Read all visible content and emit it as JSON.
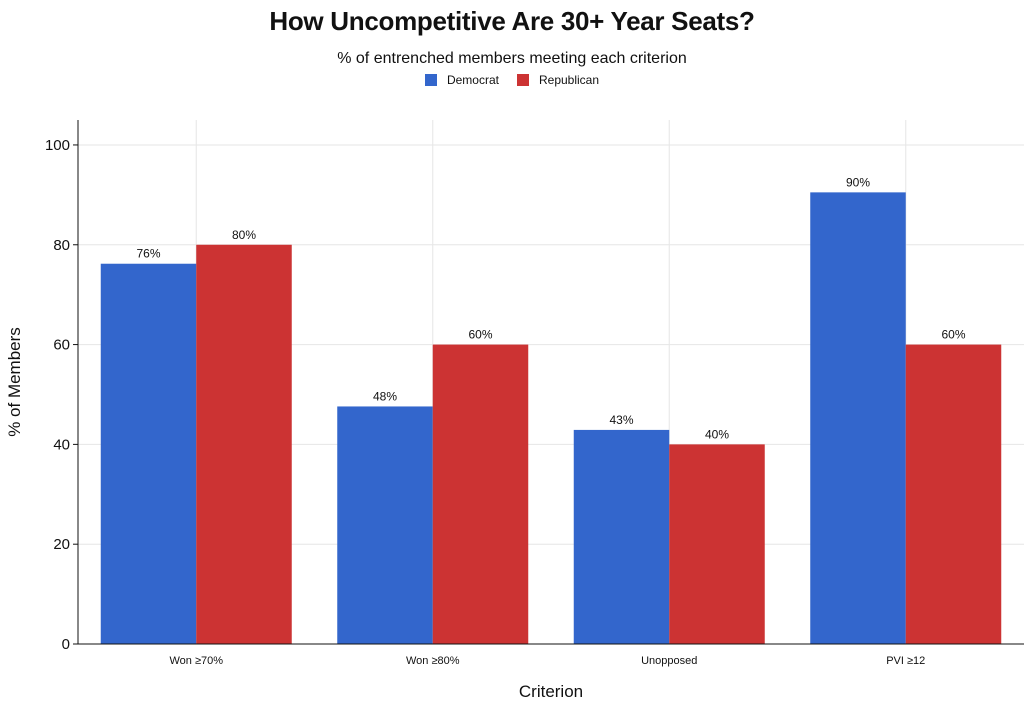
{
  "chart_data": {
    "type": "bar",
    "title": "How Uncompetitive Are 30+ Year Seats?",
    "subtitle": "% of entrenched members meeting each criterion",
    "xlabel": "Criterion",
    "ylabel": "% of Members",
    "ylim": [
      0,
      105
    ],
    "yticks": [
      0,
      20,
      40,
      60,
      80,
      100
    ],
    "grid": true,
    "legend_position": "top-center",
    "categories": [
      "Won ≥70%",
      "Won ≥80%",
      "Unopposed",
      "PVI ≥12"
    ],
    "series": [
      {
        "name": "Democrat",
        "color": "#3366cc",
        "values": [
          76.2,
          47.6,
          42.9,
          90.5
        ],
        "labels": [
          "76%",
          "48%",
          "43%",
          "90%"
        ]
      },
      {
        "name": "Republican",
        "color": "#cc3333",
        "values": [
          80,
          60,
          40,
          60
        ],
        "labels": [
          "80%",
          "60%",
          "40%",
          "60%"
        ]
      }
    ]
  }
}
